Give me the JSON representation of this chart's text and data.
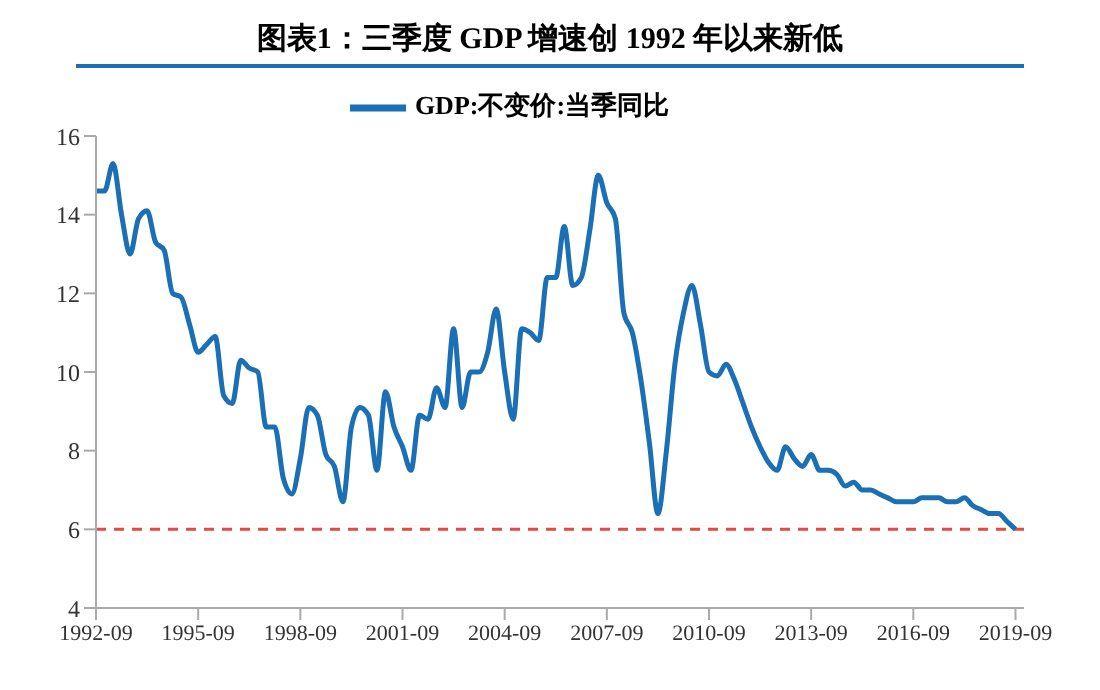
{
  "chart_data": {
    "type": "line",
    "title": "图表1：三季度 GDP 增速创 1992 年以来新低",
    "x": [
      "1992-09",
      "1992-12",
      "1993-03",
      "1993-06",
      "1993-09",
      "1993-12",
      "1994-03",
      "1994-06",
      "1994-09",
      "1994-12",
      "1995-03",
      "1995-06",
      "1995-09",
      "1995-12",
      "1996-03",
      "1996-06",
      "1996-09",
      "1996-12",
      "1997-03",
      "1997-06",
      "1997-09",
      "1997-12",
      "1998-03",
      "1998-06",
      "1998-09",
      "1998-12",
      "1999-03",
      "1999-06",
      "1999-09",
      "1999-12",
      "2000-03",
      "2000-06",
      "2000-09",
      "2000-12",
      "2001-03",
      "2001-06",
      "2001-09",
      "2001-12",
      "2002-03",
      "2002-06",
      "2002-09",
      "2002-12",
      "2003-03",
      "2003-06",
      "2003-09",
      "2003-12",
      "2004-03",
      "2004-06",
      "2004-09",
      "2004-12",
      "2005-03",
      "2005-06",
      "2005-09",
      "2005-12",
      "2006-03",
      "2006-06",
      "2006-09",
      "2006-12",
      "2007-03",
      "2007-06",
      "2007-09",
      "2007-12",
      "2008-03",
      "2008-06",
      "2008-09",
      "2008-12",
      "2009-03",
      "2009-06",
      "2009-09",
      "2009-12",
      "2010-03",
      "2010-06",
      "2010-09",
      "2010-12",
      "2011-03",
      "2011-06",
      "2011-09",
      "2011-12",
      "2012-03",
      "2012-06",
      "2012-09",
      "2012-12",
      "2013-03",
      "2013-06",
      "2013-09",
      "2013-12",
      "2014-03",
      "2014-06",
      "2014-09",
      "2014-12",
      "2015-03",
      "2015-06",
      "2015-09",
      "2015-12",
      "2016-03",
      "2016-06",
      "2016-09",
      "2016-12",
      "2017-03",
      "2017-06",
      "2017-09",
      "2017-12",
      "2018-03",
      "2018-06",
      "2018-09",
      "2018-12",
      "2019-03",
      "2019-06",
      "2019-09"
    ],
    "series": [
      {
        "name": "GDP:不变价:当季同比",
        "color": "#1a6fb5",
        "values": [
          14.6,
          14.6,
          15.3,
          14.0,
          13.0,
          13.9,
          14.1,
          13.3,
          13.1,
          12.0,
          11.9,
          11.2,
          10.5,
          10.7,
          10.9,
          9.4,
          9.2,
          10.3,
          10.1,
          10.0,
          8.6,
          8.6,
          7.3,
          6.9,
          7.8,
          9.1,
          8.9,
          7.9,
          7.6,
          6.7,
          8.6,
          9.1,
          8.9,
          7.5,
          9.5,
          8.6,
          8.1,
          7.5,
          8.9,
          8.8,
          9.6,
          9.1,
          11.1,
          9.1,
          10.0,
          10.0,
          10.5,
          11.6,
          10.0,
          8.8,
          11.1,
          11.0,
          10.8,
          12.4,
          12.4,
          13.7,
          12.2,
          12.4,
          13.6,
          15.0,
          14.3,
          13.9,
          11.5,
          11.0,
          9.8,
          8.2,
          6.4,
          8.0,
          10.2,
          11.5,
          12.2,
          11.2,
          10.0,
          9.9,
          10.2,
          9.8,
          9.2,
          8.6,
          8.1,
          7.7,
          7.5,
          8.1,
          7.8,
          7.6,
          7.9,
          7.5,
          7.5,
          7.4,
          7.1,
          7.2,
          7.0,
          7.0,
          6.9,
          6.8,
          6.7,
          6.7,
          6.7,
          6.8,
          6.8,
          6.8,
          6.7,
          6.7,
          6.8,
          6.6,
          6.5,
          6.4,
          6.4,
          6.2,
          6.0
        ]
      }
    ],
    "xlim": [
      "1992-09",
      "2019-12"
    ],
    "xticks": [
      "1992-09",
      "1995-09",
      "1998-09",
      "2001-09",
      "2004-09",
      "2007-09",
      "2010-09",
      "2013-09",
      "2016-09",
      "2019-09"
    ],
    "ylim": [
      4,
      16
    ],
    "yticks": [
      4,
      6,
      8,
      10,
      12,
      14,
      16
    ],
    "ref_lines": [
      {
        "axis": "y",
        "value": 6,
        "color": "#e8483f",
        "line_style": "dashed"
      }
    ],
    "legend": "top",
    "grid": false,
    "marker": "none",
    "line_style": "solid"
  }
}
